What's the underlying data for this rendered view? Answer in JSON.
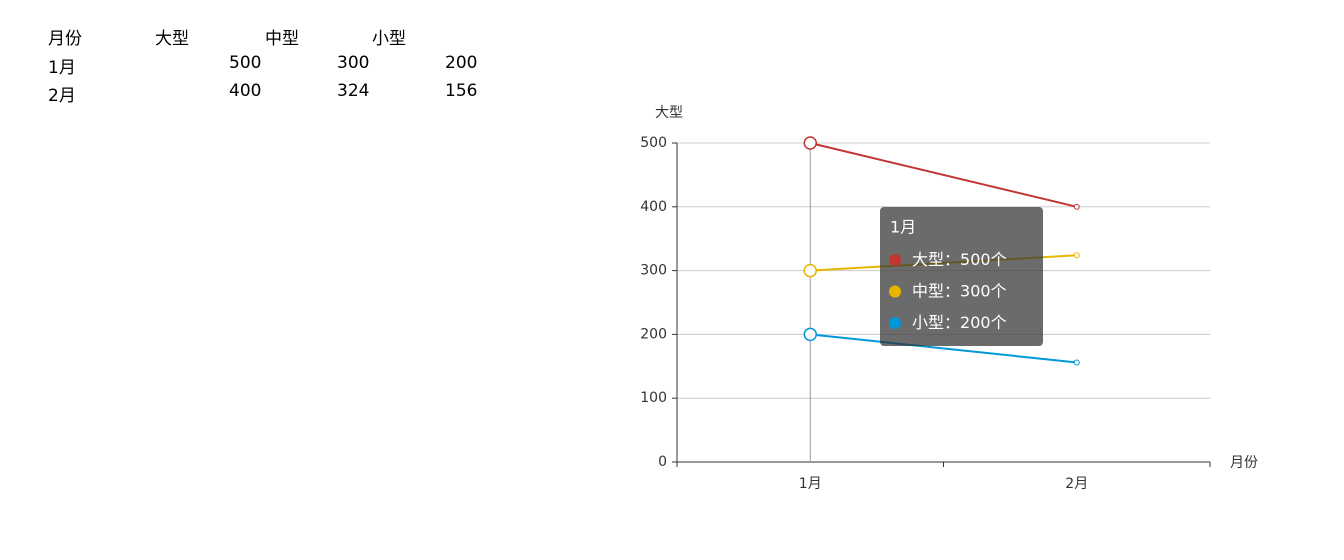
{
  "table": {
    "header": [
      "月份",
      "大型",
      "中型",
      "小型"
    ],
    "rows": [
      [
        "1月",
        500,
        300,
        200
      ],
      [
        "2月",
        400,
        324,
        156
      ]
    ]
  },
  "chart_data": {
    "type": "line",
    "x_label": "月份",
    "y_label": "大型",
    "categories": [
      "1月",
      "2月"
    ],
    "series": [
      {
        "name": "大型",
        "color": "#c23531",
        "values": [
          500,
          400
        ]
      },
      {
        "name": "中型",
        "color": "#e6b600",
        "values": [
          300,
          324
        ]
      },
      {
        "name": "小型",
        "color": "#0098d9",
        "values": [
          200,
          156
        ]
      }
    ],
    "ylim": [
      0,
      500
    ],
    "yticks": [
      0,
      100,
      200,
      300,
      400,
      500
    ],
    "grid": true,
    "tooltip": {
      "separator": "：",
      "unit": "个"
    }
  }
}
